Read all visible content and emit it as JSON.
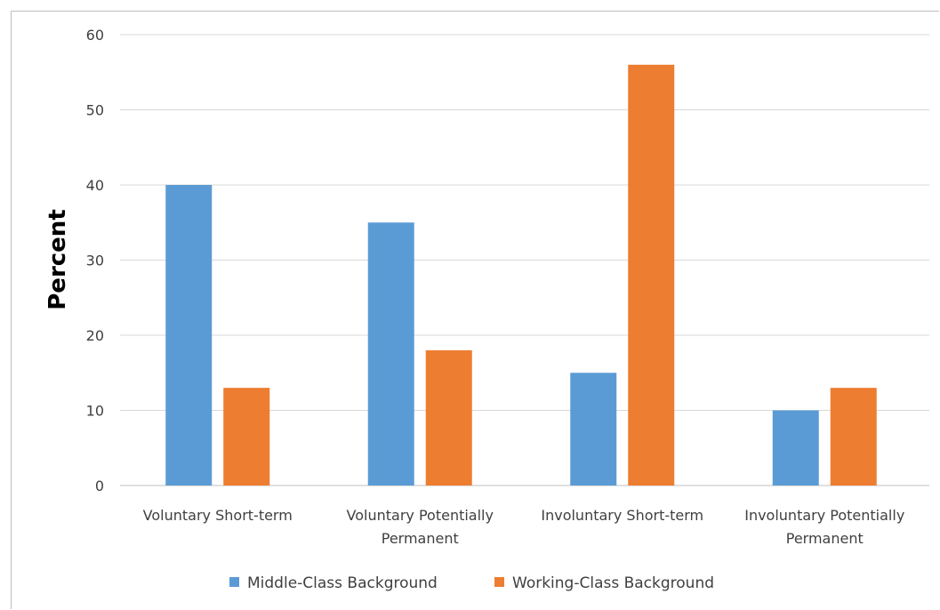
{
  "chart_data": {
    "type": "bar",
    "title": "",
    "xlabel": "",
    "ylabel": "Percent",
    "ylim": [
      0,
      60
    ],
    "yticks": [
      0,
      10,
      20,
      30,
      40,
      50,
      60
    ],
    "grid": true,
    "legend_position": "bottom",
    "categories": [
      [
        "Voluntary Short-term"
      ],
      [
        "Voluntary Potentially",
        "Permanent"
      ],
      [
        "Involuntary Short-term"
      ],
      [
        "Involuntary Potentially",
        "Permanent"
      ]
    ],
    "series": [
      {
        "name": "Middle-Class Background",
        "color": "#5b9bd5",
        "values": [
          40,
          35,
          15,
          10
        ]
      },
      {
        "name": "Working-Class Background",
        "color": "#ed7d31",
        "values": [
          13,
          18,
          56,
          13
        ]
      }
    ]
  }
}
